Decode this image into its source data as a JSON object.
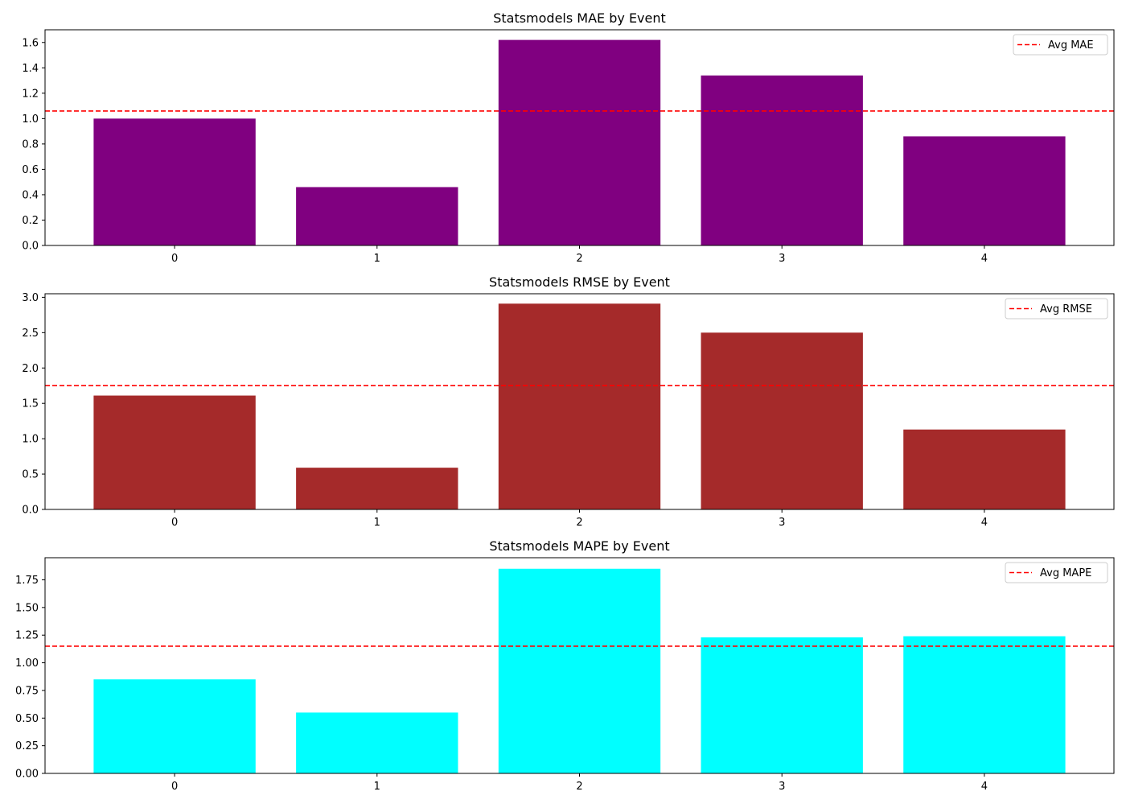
{
  "chart_data": [
    {
      "type": "bar",
      "title": "Statsmodels MAE by Event",
      "categories": [
        "0",
        "1",
        "2",
        "3",
        "4"
      ],
      "values": [
        1.0,
        0.46,
        1.62,
        1.34,
        0.86
      ],
      "bar_color": "#800080",
      "ylim": [
        0,
        1.7
      ],
      "yticks": [
        0.0,
        0.2,
        0.4,
        0.6,
        0.8,
        1.0,
        1.2,
        1.4,
        1.6
      ],
      "ytick_labels": [
        "0.0",
        "0.2",
        "0.4",
        "0.6",
        "0.8",
        "1.0",
        "1.2",
        "1.4",
        "1.6"
      ],
      "avg_line": {
        "value": 1.06,
        "label": "Avg MAE",
        "color": "#ff0000"
      },
      "legend_position": "upper-right",
      "grid": false
    },
    {
      "type": "bar",
      "title": "Statsmodels RMSE by Event",
      "categories": [
        "0",
        "1",
        "2",
        "3",
        "4"
      ],
      "values": [
        1.61,
        0.59,
        2.91,
        2.5,
        1.13
      ],
      "bar_color": "#a52a2a",
      "ylim": [
        0,
        3.05
      ],
      "yticks": [
        0.0,
        0.5,
        1.0,
        1.5,
        2.0,
        2.5,
        3.0
      ],
      "ytick_labels": [
        "0.0",
        "0.5",
        "1.0",
        "1.5",
        "2.0",
        "2.5",
        "3.0"
      ],
      "avg_line": {
        "value": 1.75,
        "label": "Avg RMSE",
        "color": "#ff0000"
      },
      "legend_position": "upper-right",
      "grid": false
    },
    {
      "type": "bar",
      "title": "Statsmodels MAPE by Event",
      "categories": [
        "0",
        "1",
        "2",
        "3",
        "4"
      ],
      "values": [
        0.85,
        0.55,
        1.85,
        1.23,
        1.24
      ],
      "bar_color": "#00ffff",
      "ylim": [
        0,
        1.95
      ],
      "yticks": [
        0.0,
        0.25,
        0.5,
        0.75,
        1.0,
        1.25,
        1.5,
        1.75
      ],
      "ytick_labels": [
        "0.00",
        "0.25",
        "0.50",
        "0.75",
        "1.00",
        "1.25",
        "1.50",
        "1.75"
      ],
      "avg_line": {
        "value": 1.15,
        "label": "Avg MAPE",
        "color": "#ff0000"
      },
      "legend_position": "upper-right",
      "grid": false
    }
  ]
}
